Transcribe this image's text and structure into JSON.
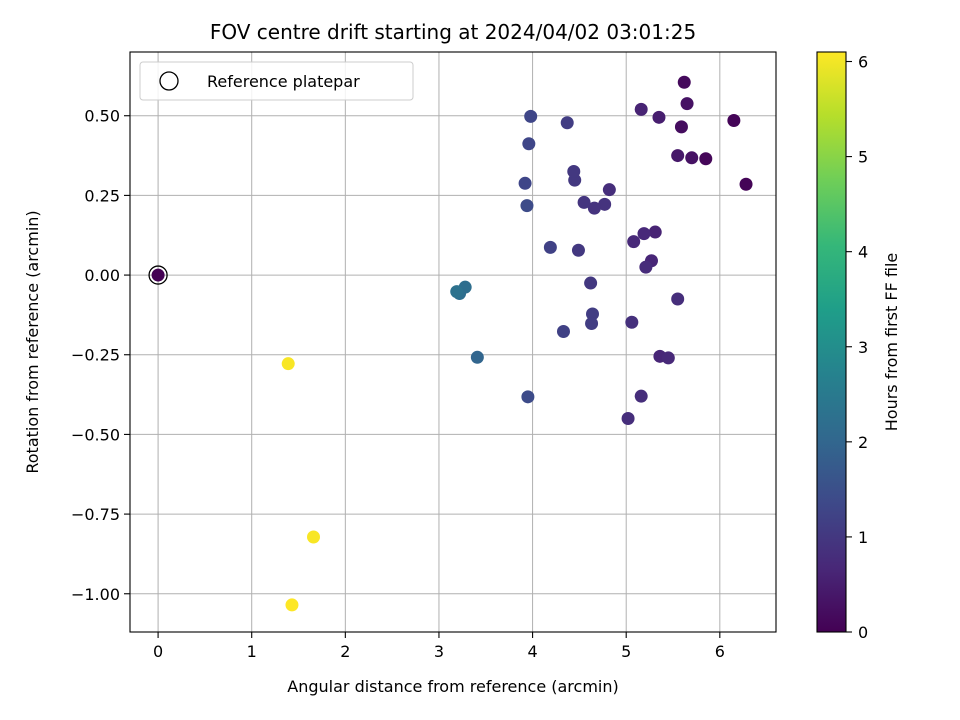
{
  "chart_data": {
    "type": "scatter",
    "title": "FOV centre drift starting at 2024/04/02 03:01:25",
    "xlabel": "Angular distance from reference (arcmin)",
    "ylabel": "Rotation from reference (arcmin)",
    "xlim": [
      -0.3,
      6.6
    ],
    "ylim": [
      -1.12,
      0.7
    ],
    "xticks": [
      0,
      1,
      2,
      3,
      4,
      5,
      6
    ],
    "xtick_labels": [
      "0",
      "1",
      "2",
      "3",
      "4",
      "5",
      "6"
    ],
    "yticks": [
      -1.0,
      -0.75,
      -0.5,
      -0.25,
      0.0,
      0.25,
      0.5
    ],
    "ytick_labels": [
      "−1.00",
      "−0.75",
      "−0.50",
      "−0.25",
      "0.00",
      "0.25",
      "0.50"
    ],
    "grid": true,
    "legend": {
      "position": "top-left",
      "entries": [
        "Reference platepar"
      ]
    },
    "reference_point": {
      "x": 0,
      "y": 0
    },
    "colorbar": {
      "label": "Hours from first FF file",
      "colormap": "viridis",
      "range": [
        0,
        6.1
      ],
      "ticks": [
        0,
        1,
        2,
        3,
        4,
        5,
        6
      ],
      "tick_labels": [
        "0",
        "1",
        "2",
        "3",
        "4",
        "5",
        "6"
      ]
    },
    "colormap_stops": [
      "#440154",
      "#482878",
      "#3e4989",
      "#31688e",
      "#26828e",
      "#1f9e89",
      "#35b779",
      "#6ece58",
      "#b5de2b",
      "#fde725"
    ],
    "points": [
      {
        "x": 0.0,
        "y": 0.0,
        "c": 0.0
      },
      {
        "x": 6.15,
        "y": 0.485,
        "c": 0.05
      },
      {
        "x": 6.28,
        "y": 0.285,
        "c": 0.05
      },
      {
        "x": 5.85,
        "y": 0.365,
        "c": 0.1
      },
      {
        "x": 5.62,
        "y": 0.605,
        "c": 0.15
      },
      {
        "x": 5.59,
        "y": 0.465,
        "c": 0.2
      },
      {
        "x": 5.65,
        "y": 0.538,
        "c": 0.3
      },
      {
        "x": 5.7,
        "y": 0.368,
        "c": 0.3
      },
      {
        "x": 5.55,
        "y": 0.375,
        "c": 0.4
      },
      {
        "x": 5.35,
        "y": 0.495,
        "c": 0.5
      },
      {
        "x": 5.16,
        "y": 0.52,
        "c": 0.6
      },
      {
        "x": 5.31,
        "y": 0.135,
        "c": 0.6
      },
      {
        "x": 5.19,
        "y": 0.13,
        "c": 0.7
      },
      {
        "x": 5.08,
        "y": 0.105,
        "c": 0.7
      },
      {
        "x": 5.27,
        "y": 0.045,
        "c": 0.65
      },
      {
        "x": 5.21,
        "y": 0.025,
        "c": 0.75
      },
      {
        "x": 5.36,
        "y": -0.255,
        "c": 0.65
      },
      {
        "x": 5.45,
        "y": -0.26,
        "c": 0.7
      },
      {
        "x": 5.55,
        "y": -0.075,
        "c": 0.8
      },
      {
        "x": 5.16,
        "y": -0.38,
        "c": 0.8
      },
      {
        "x": 5.06,
        "y": -0.148,
        "c": 0.85
      },
      {
        "x": 5.02,
        "y": -0.45,
        "c": 0.8
      },
      {
        "x": 4.82,
        "y": 0.268,
        "c": 0.8
      },
      {
        "x": 4.77,
        "y": 0.222,
        "c": 0.9
      },
      {
        "x": 4.66,
        "y": 0.21,
        "c": 0.9
      },
      {
        "x": 4.55,
        "y": 0.228,
        "c": 0.95
      },
      {
        "x": 4.45,
        "y": 0.298,
        "c": 1.0
      },
      {
        "x": 4.44,
        "y": 0.325,
        "c": 1.0
      },
      {
        "x": 4.49,
        "y": 0.078,
        "c": 1.0
      },
      {
        "x": 4.62,
        "y": -0.025,
        "c": 1.0
      },
      {
        "x": 4.64,
        "y": -0.122,
        "c": 1.1
      },
      {
        "x": 4.63,
        "y": -0.152,
        "c": 1.1
      },
      {
        "x": 4.37,
        "y": 0.478,
        "c": 1.1
      },
      {
        "x": 4.33,
        "y": -0.177,
        "c": 1.2
      },
      {
        "x": 4.19,
        "y": 0.087,
        "c": 1.2
      },
      {
        "x": 3.98,
        "y": 0.498,
        "c": 1.3
      },
      {
        "x": 3.96,
        "y": 0.412,
        "c": 1.3
      },
      {
        "x": 3.92,
        "y": 0.288,
        "c": 1.3
      },
      {
        "x": 3.94,
        "y": 0.218,
        "c": 1.4
      },
      {
        "x": 3.95,
        "y": -0.382,
        "c": 1.4
      },
      {
        "x": 3.41,
        "y": -0.258,
        "c": 2.0
      },
      {
        "x": 3.28,
        "y": -0.038,
        "c": 2.2
      },
      {
        "x": 3.22,
        "y": -0.058,
        "c": 2.2
      },
      {
        "x": 3.19,
        "y": -0.052,
        "c": 2.3
      },
      {
        "x": 1.39,
        "y": -0.278,
        "c": 6.05
      },
      {
        "x": 1.66,
        "y": -0.822,
        "c": 6.05
      },
      {
        "x": 1.43,
        "y": -1.035,
        "c": 6.1
      }
    ]
  }
}
